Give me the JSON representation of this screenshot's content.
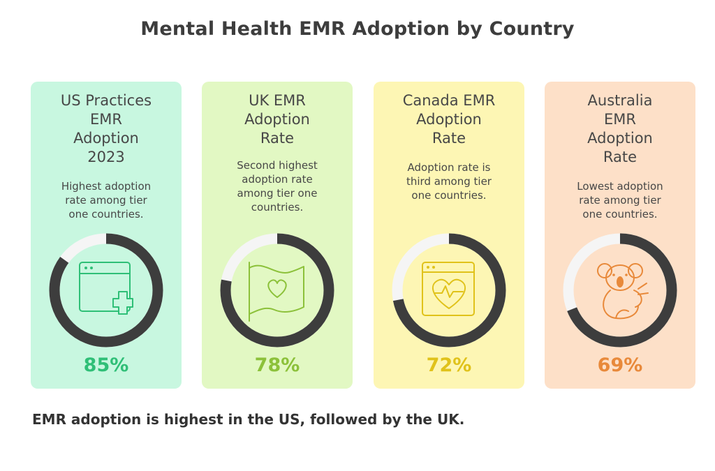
{
  "chart_data": {
    "type": "donut",
    "title": "Mental Health EMR Adoption by Country",
    "categories": [
      "US",
      "UK",
      "Canada",
      "Australia"
    ],
    "values": [
      85,
      78,
      72,
      69
    ],
    "unit": "%",
    "cards": [
      {
        "title_lines": [
          "US Practices",
          "EMR",
          "Adoption",
          "2023"
        ],
        "desc_lines": [
          "Highest adoption",
          "rate among tier",
          "one countries."
        ],
        "value": 85,
        "label": "85%",
        "bg": "#c8f7e0",
        "accent": "#2fbf77",
        "icon": "browser-plus-icon"
      },
      {
        "title_lines": [
          "UK EMR",
          "Adoption",
          "Rate"
        ],
        "desc_lines": [
          "Second highest",
          "adoption rate",
          "among tier one",
          "countries."
        ],
        "value": 78,
        "label": "78%",
        "bg": "#e2f8c3",
        "accent": "#8cc13a",
        "icon": "heart-flag-icon"
      },
      {
        "title_lines": [
          "Canada EMR",
          "Adoption",
          "Rate"
        ],
        "desc_lines": [
          "Adoption rate is",
          "third among tier",
          "one countries."
        ],
        "value": 72,
        "label": "72%",
        "bg": "#fdf6b4",
        "accent": "#e0c21a",
        "icon": "browser-heartbeat-icon"
      },
      {
        "title_lines": [
          "Australia",
          "EMR",
          "Adoption",
          "Rate"
        ],
        "desc_lines": [
          "Lowest adoption",
          "rate among tier",
          "one countries."
        ],
        "value": 69,
        "label": "69%",
        "bg": "#fde0c8",
        "accent": "#e8893a",
        "icon": "koala-icon"
      }
    ],
    "footer": "EMR adoption is highest in the US, followed by the UK."
  }
}
